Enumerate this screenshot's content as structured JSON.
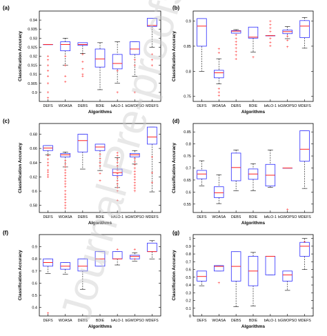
{
  "chart_data": [
    {
      "type": "box",
      "panel_label": "(a)",
      "categories": [
        "DEFS",
        "WOASA",
        "DEBS",
        "BDIE",
        "bALO-1",
        "bGWOPSO",
        "MDEFS"
      ],
      "xlabel": "Algorithms",
      "ylabel": "Classification Accuracy",
      "ylim": [
        0.895,
        0.945
      ],
      "yticks": [
        "0.9",
        "0.905",
        "0.91",
        "0.915",
        "0.92",
        "0.925",
        "0.93",
        "0.935",
        "0.94"
      ],
      "yticks_visible": [
        "0.9",
        "0.91",
        "0.92",
        "0.93",
        "0.94"
      ],
      "boxes": [
        {
          "lw": 0.9265,
          "q1": 0.9265,
          "med": 0.9265,
          "q3": 0.9265,
          "uw": 0.9265,
          "outliers": [
            0.92,
            0.918,
            0.915,
            0.912,
            0.909,
            0.905,
            0.9,
            0.897
          ]
        },
        {
          "lw": 0.915,
          "q1": 0.923,
          "med": 0.9265,
          "q3": 0.928,
          "uw": 0.93,
          "outliers": [
            0.92,
            0.915,
            0.909,
            0.906
          ]
        },
        {
          "lw": 0.9215,
          "q1": 0.926,
          "med": 0.9265,
          "q3": 0.9275,
          "uw": 0.9275,
          "outliers": [
            0.921,
            0.917,
            0.913,
            0.91,
            0.909
          ]
        },
        {
          "lw": 0.9015,
          "q1": 0.914,
          "med": 0.9185,
          "q3": 0.924,
          "uw": 0.9275,
          "outliers": []
        },
        {
          "lw": 0.905,
          "q1": 0.913,
          "med": 0.916,
          "q3": 0.921,
          "uw": 0.928,
          "outliers": [
            0.912,
            0.9
          ]
        },
        {
          "lw": 0.909,
          "q1": 0.921,
          "med": 0.924,
          "q3": 0.928,
          "uw": 0.928,
          "outliers": [
            0.918,
            0.915,
            0.9
          ]
        },
        {
          "lw": 0.925,
          "q1": 0.9365,
          "med": 0.937,
          "q3": 0.941,
          "uw": 0.941,
          "outliers": [
            0.921,
            0.918,
            0.915
          ]
        }
      ]
    },
    {
      "type": "box",
      "panel_label": "(b)",
      "categories": [
        "DEFS",
        "WOASA",
        "DEBS",
        "BDIE",
        "bALO-1",
        "bGWOPSO",
        "MDEFS"
      ],
      "xlabel": "Algorithms",
      "ylabel": "Classification Accuracy",
      "ylim": [
        0.74,
        0.92
      ],
      "yticks": [
        "0.75",
        "0.8",
        "0.85",
        "0.9"
      ],
      "boxes": [
        {
          "lw": 0.8,
          "q1": 0.85,
          "med": 0.89,
          "q3": 0.905,
          "uw": 0.905,
          "outliers": []
        },
        {
          "lw": 0.775,
          "q1": 0.787,
          "med": 0.797,
          "q3": 0.802,
          "uw": 0.825,
          "outliers": [
            0.845,
            0.837,
            0.766,
            0.758,
            0.752
          ]
        },
        {
          "lw": 0.876,
          "q1": 0.876,
          "med": 0.88,
          "q3": 0.881,
          "uw": 0.883,
          "outliers": [
            0.873,
            0.865,
            0.859,
            0.853,
            0.846,
            0.839,
            0.832,
            0.825
          ]
        },
        {
          "lw": 0.838,
          "q1": 0.866,
          "med": 0.868,
          "q3": 0.888,
          "uw": 0.888,
          "outliers": [
            0.828
          ]
        },
        {
          "lw": 0.871,
          "q1": 0.871,
          "med": 0.871,
          "q3": 0.871,
          "uw": 0.871,
          "outliers": [
            0.9,
            0.893,
            0.886,
            0.879,
            0.865,
            0.858,
            0.851
          ]
        },
        {
          "lw": 0.865,
          "q1": 0.875,
          "med": 0.879,
          "q3": 0.882,
          "uw": 0.889,
          "outliers": [
            0.87,
            0.862,
            0.849
          ]
        },
        {
          "lw": 0.846,
          "q1": 0.867,
          "med": 0.89,
          "q3": 0.901,
          "uw": 0.907,
          "outliers": []
        }
      ]
    },
    {
      "type": "box",
      "panel_label": "(c)",
      "categories": [
        "DEFS",
        "WOASA",
        "DEBS",
        "BDIE",
        "bALO-1",
        "bGWOPSO",
        "MDEFS"
      ],
      "xlabel": "Algorithms",
      "ylabel": "Classification Accuracy",
      "ylim": [
        0.57,
        0.695
      ],
      "yticks": [
        "0.58",
        "0.6",
        "0.62",
        "0.64",
        "0.66",
        "0.68"
      ],
      "boxes": [
        {
          "lw": 0.651,
          "q1": 0.657,
          "med": 0.6605,
          "q3": 0.664,
          "uw": 0.664,
          "outliers": [
            0.65,
            0.645,
            0.64,
            0.636,
            0.63,
            0.627,
            0.623,
            0.62
          ]
        },
        {
          "lw": 0.634,
          "q1": 0.648,
          "med": 0.651,
          "q3": 0.653,
          "uw": 0.655,
          "outliers": [
            0.643,
            0.638,
            0.634,
            0.63,
            0.626,
            0.622,
            0.618,
            0.614,
            0.61,
            0.606,
            0.6,
            0.596,
            0.592,
            0.588,
            0.584,
            0.58,
            0.576
          ]
        },
        {
          "lw": 0.631,
          "q1": 0.655,
          "med": 0.671,
          "q3": 0.68,
          "uw": 0.68,
          "outliers": []
        },
        {
          "lw": 0.629,
          "q1": 0.657,
          "med": 0.662,
          "q3": 0.666,
          "uw": 0.666,
          "outliers": [
            0.652,
            0.646,
            0.64,
            0.635,
            0.625,
            0.615
          ]
        },
        {
          "lw": 0.605,
          "q1": 0.622,
          "med": 0.626,
          "q3": 0.631,
          "uw": 0.647,
          "outliers": [
            0.654,
            0.65,
            0.645,
            0.64,
            0.635,
            0.63,
            0.625,
            0.62,
            0.615,
            0.61,
            0.605,
            0.6,
            0.587
          ]
        },
        {
          "lw": 0.638,
          "q1": 0.648,
          "med": 0.651,
          "q3": 0.653,
          "uw": 0.657,
          "outliers": [
            0.646,
            0.641,
            0.637,
            0.632,
            0.628,
            0.624,
            0.62,
            0.616,
            0.612,
            0.608,
            0.604,
            0.6
          ]
        },
        {
          "lw": 0.599,
          "q1": 0.666,
          "med": 0.676,
          "q3": 0.69,
          "uw": 0.69,
          "outliers": [
            0.648,
            0.626,
            0.612
          ]
        }
      ]
    },
    {
      "type": "box",
      "panel_label": "(d)",
      "categories": [
        "DEFS",
        "WOASA",
        "DEBS",
        "BDIE",
        "bALO-1",
        "bGWOPSO",
        "MDEFS"
      ],
      "xlabel": "Algorithms",
      "ylabel": "Classification Accuracy",
      "ylim": [
        0.515,
        0.885
      ],
      "yticks": [
        "0.55",
        "0.6",
        "0.65",
        "0.7",
        "0.75",
        "0.8",
        "0.85"
      ],
      "boxes": [
        {
          "lw": 0.625,
          "q1": 0.655,
          "med": 0.675,
          "q3": 0.69,
          "uw": 0.73,
          "outliers": []
        },
        {
          "lw": 0.552,
          "q1": 0.577,
          "med": 0.597,
          "q3": 0.622,
          "uw": 0.672,
          "outliers": []
        },
        {
          "lw": 0.605,
          "q1": 0.647,
          "med": 0.702,
          "q3": 0.762,
          "uw": 0.775,
          "outliers": []
        },
        {
          "lw": 0.605,
          "q1": 0.653,
          "med": 0.675,
          "q3": 0.696,
          "uw": 0.718,
          "outliers": []
        },
        {
          "lw": 0.62,
          "q1": 0.625,
          "med": 0.67,
          "q3": 0.715,
          "uw": 0.775,
          "outliers": []
        },
        {
          "lw": 0.7,
          "q1": 0.7,
          "med": 0.7,
          "q3": 0.7,
          "uw": 0.7,
          "outliers": [
            0.528
          ]
        },
        {
          "lw": 0.615,
          "q1": 0.728,
          "med": 0.778,
          "q3": 0.855,
          "uw": 0.855,
          "outliers": []
        }
      ]
    },
    {
      "type": "box",
      "panel_label": "(f)",
      "categories": [
        "DEFS",
        "WOASA",
        "DEBS",
        "BDIE",
        "bALO-1",
        "bGWOPSO",
        "MDEFS"
      ],
      "xlabel": "Algorithms",
      "ylabel": "Classification Accuracy",
      "ylim": [
        0.33,
        1.0
      ],
      "yticks": [
        "0.4",
        "0.5",
        "0.6",
        "0.7",
        "0.8",
        "0.9"
      ],
      "boxes": [
        {
          "lw": 0.68,
          "q1": 0.74,
          "med": 0.77,
          "q3": 0.8,
          "uw": 0.8,
          "outliers": [
            0.355
          ]
        },
        {
          "lw": 0.675,
          "q1": 0.715,
          "med": 0.74,
          "q3": 0.77,
          "uw": 0.77,
          "outliers": []
        },
        {
          "lw": 0.55,
          "q1": 0.7,
          "med": 0.74,
          "q3": 0.8,
          "uw": 0.8,
          "outliers": []
        },
        {
          "lw": 0.74,
          "q1": 0.74,
          "med": 0.8,
          "q3": 0.86,
          "uw": 0.86,
          "outliers": []
        },
        {
          "lw": 0.75,
          "q1": 0.8,
          "med": 0.8,
          "q3": 0.86,
          "uw": 0.86,
          "outliers": [
            0.88
          ]
        },
        {
          "lw": 0.78,
          "q1": 0.8,
          "med": 0.82,
          "q3": 0.83,
          "uw": 0.85,
          "outliers": [
            0.88,
            0.8
          ]
        },
        {
          "lw": 0.8,
          "q1": 0.86,
          "med": 0.86,
          "q3": 0.93,
          "uw": 0.95,
          "outliers": []
        }
      ]
    },
    {
      "type": "box",
      "panel_label": "(g)",
      "categories": [
        "DEFS",
        "WOASA",
        "DEBS",
        "BDIE",
        "bALO-1",
        "bGWOPSO",
        "MDEFS"
      ],
      "xlabel": "Algorithms",
      "ylabel": "Classification Accuracy",
      "ylim": [
        0.0,
        1.05
      ],
      "yticks": [
        "0",
        "0.1",
        "0.2",
        "0.3",
        "0.4",
        "0.5",
        "0.6",
        "0.7",
        "0.8",
        "0.9",
        "1"
      ],
      "boxes": [
        {
          "lw": 0.39,
          "q1": 0.45,
          "med": 0.51,
          "q3": 0.58,
          "uw": 0.58,
          "outliers": []
        },
        {
          "lw": 0.58,
          "q1": 0.58,
          "med": 0.64,
          "q3": 0.65,
          "uw": 0.65,
          "outliers": [
            0.43
          ]
        },
        {
          "lw": 0.12,
          "q1": 0.45,
          "med": 0.64,
          "q3": 0.83,
          "uw": 0.83,
          "outliers": []
        },
        {
          "lw": 0.13,
          "q1": 0.39,
          "med": 0.58,
          "q3": 0.77,
          "uw": 0.82,
          "outliers": []
        },
        {
          "lw": 0.53,
          "q1": 0.53,
          "med": 0.77,
          "q3": 0.77,
          "uw": 0.77,
          "outliers": []
        },
        {
          "lw": 0.33,
          "q1": 0.45,
          "med": 0.53,
          "q3": 0.58,
          "uw": 0.58,
          "outliers": []
        },
        {
          "lw": 0.6,
          "q1": 0.77,
          "med": 0.9,
          "q3": 0.95,
          "uw": 1.0,
          "outliers": [
            0.96
          ]
        }
      ]
    }
  ],
  "watermark_text": "Journal Pre-proofs",
  "colors": {
    "box": "#2b2bff",
    "median": "#ff2020",
    "outlier": "#ff2020",
    "whisker": "#000000",
    "axes": "#000000"
  }
}
